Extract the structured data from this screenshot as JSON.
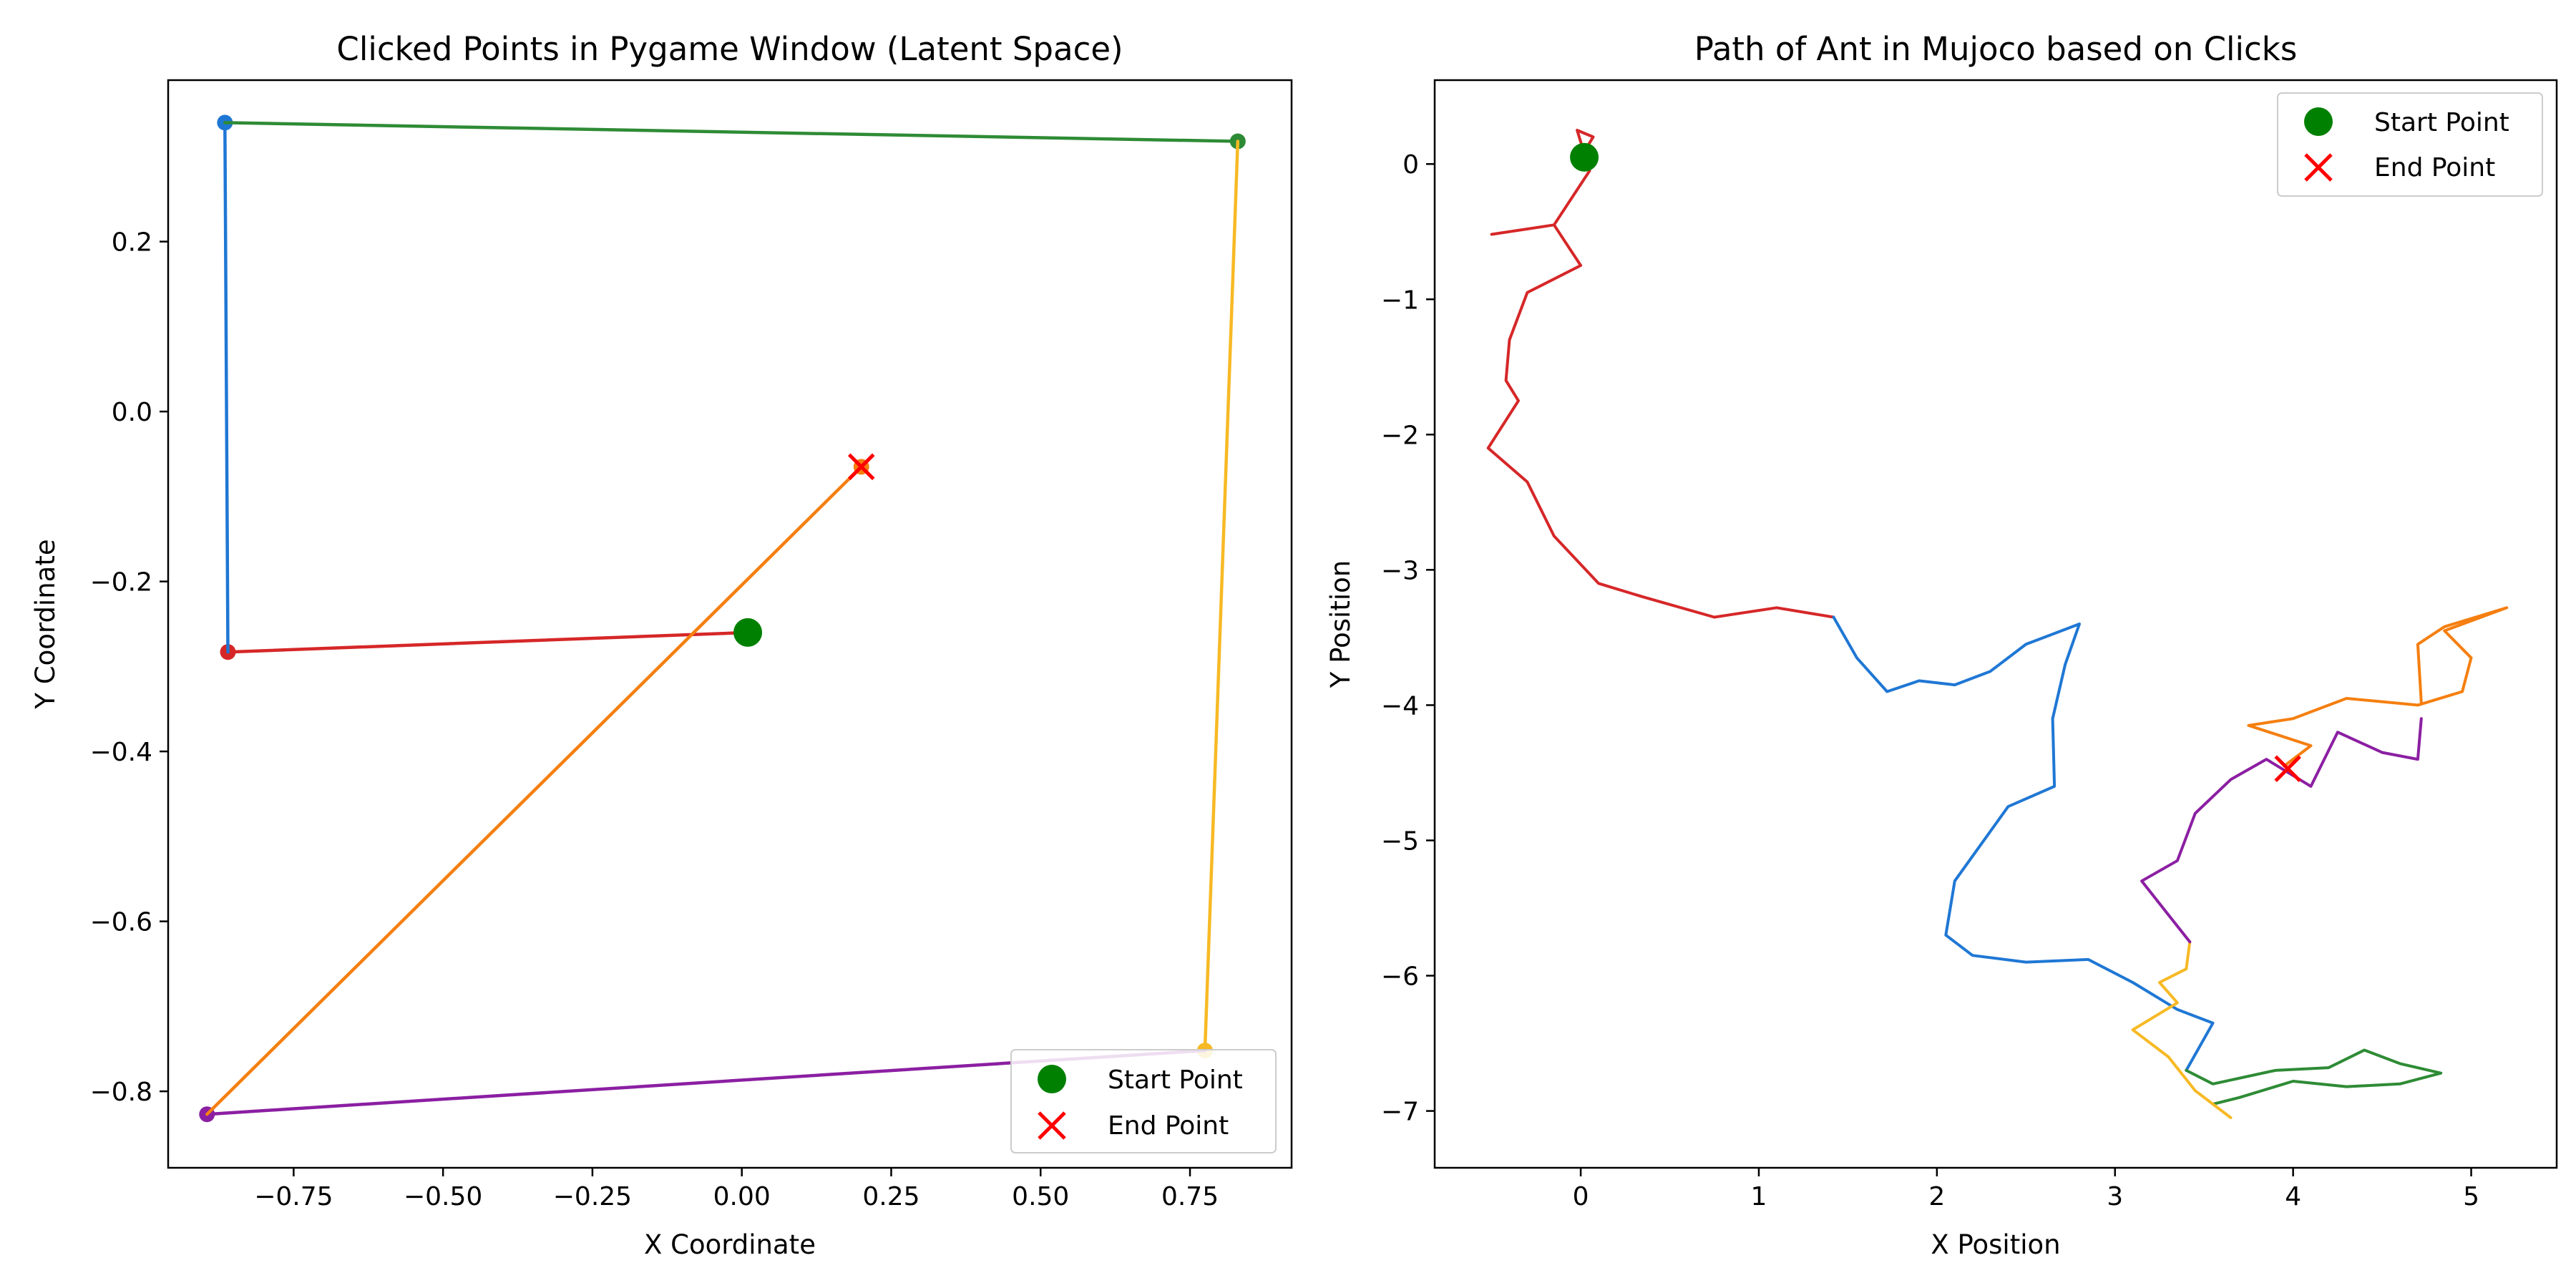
{
  "chart_data": [
    {
      "type": "line",
      "title": "Clicked Points in Pygame Window (Latent Space)",
      "xlabel": "X Coordinate",
      "ylabel": "Y Coordinate",
      "xlim": [
        -0.96,
        0.92
      ],
      "ylim": [
        -0.89,
        0.39
      ],
      "xticks": [
        -0.75,
        -0.5,
        -0.25,
        0.0,
        0.25,
        0.5,
        0.75
      ],
      "xtick_labels": [
        "−0.75",
        "−0.50",
        "−0.25",
        "0.00",
        "0.25",
        "0.50",
        "0.75"
      ],
      "yticks": [
        -0.8,
        -0.6,
        -0.4,
        -0.2,
        0.0,
        0.2
      ],
      "ytick_labels": [
        "−0.8",
        "−0.6",
        "−0.4",
        "−0.2",
        "0.0",
        "0.2"
      ],
      "grid": false,
      "legend": {
        "placement": "lower-right",
        "entries": [
          {
            "label": "Start Point",
            "marker": "circle",
            "color": "#008000"
          },
          {
            "label": "End Point",
            "marker": "x",
            "color": "#ff0000"
          }
        ]
      },
      "series": [
        {
          "color": "#d62728",
          "points": [
            [
              0.01,
              -0.26
            ],
            [
              -0.86,
              -0.283
            ]
          ]
        },
        {
          "color": "#1f77d4",
          "points": [
            [
              -0.86,
              -0.283
            ],
            [
              -0.865,
              0.34
            ]
          ]
        },
        {
          "color": "#2e8b35",
          "points": [
            [
              -0.865,
              0.34
            ],
            [
              0.83,
              0.318
            ]
          ]
        },
        {
          "color": "#f7b924",
          "points": [
            [
              0.83,
              0.318
            ],
            [
              0.775,
              -0.752
            ]
          ]
        },
        {
          "color": "#8b1fa2",
          "points": [
            [
              0.775,
              -0.752
            ],
            [
              -0.895,
              -0.827
            ]
          ]
        },
        {
          "color": "#f57f10",
          "points": [
            [
              -0.895,
              -0.827
            ],
            [
              0.2,
              -0.065
            ]
          ]
        }
      ],
      "start_point": [
        0.01,
        -0.26
      ],
      "end_point": [
        0.2,
        -0.065
      ]
    },
    {
      "type": "line",
      "title": "Path of Ant in Mujoco based on Clicks",
      "xlabel": "X Position",
      "ylabel": "Y Position",
      "xlim": [
        -0.82,
        5.48
      ],
      "ylim": [
        -7.42,
        0.62
      ],
      "xticks": [
        0,
        1,
        2,
        3,
        4,
        5
      ],
      "xtick_labels": [
        "0",
        "1",
        "2",
        "3",
        "4",
        "5"
      ],
      "yticks": [
        0,
        -1,
        -2,
        -3,
        -4,
        -5,
        -6,
        -7
      ],
      "ytick_labels": [
        "0",
        "−1",
        "−2",
        "−3",
        "−4",
        "−5",
        "−6",
        "−7"
      ],
      "grid": false,
      "legend": {
        "placement": "upper-right",
        "entries": [
          {
            "label": "Start Point",
            "marker": "circle",
            "color": "#008000"
          },
          {
            "label": "End Point",
            "marker": "x",
            "color": "#ff0000"
          }
        ]
      },
      "series": [
        {
          "color": "#d62728",
          "points": [
            [
              0.0,
              0.05
            ],
            [
              0.07,
              0.2
            ],
            [
              -0.02,
              0.25
            ],
            [
              0.05,
              -0.05
            ],
            [
              -0.15,
              -0.45
            ],
            [
              -0.5,
              -0.52
            ],
            [
              -0.15,
              -0.45
            ],
            [
              0.0,
              -0.75
            ],
            [
              -0.3,
              -0.95
            ],
            [
              -0.4,
              -1.3
            ],
            [
              -0.42,
              -1.6
            ],
            [
              -0.35,
              -1.75
            ],
            [
              -0.52,
              -2.1
            ],
            [
              -0.3,
              -2.35
            ],
            [
              -0.15,
              -2.75
            ],
            [
              0.1,
              -3.1
            ],
            [
              0.35,
              -3.2
            ],
            [
              0.75,
              -3.35
            ],
            [
              1.1,
              -3.28
            ],
            [
              1.42,
              -3.35
            ]
          ]
        },
        {
          "color": "#1f77d4",
          "points": [
            [
              1.42,
              -3.35
            ],
            [
              1.55,
              -3.65
            ],
            [
              1.72,
              -3.9
            ],
            [
              1.9,
              -3.82
            ],
            [
              2.1,
              -3.85
            ],
            [
              2.3,
              -3.75
            ],
            [
              2.5,
              -3.55
            ],
            [
              2.8,
              -3.4
            ],
            [
              2.72,
              -3.7
            ],
            [
              2.65,
              -4.1
            ],
            [
              2.66,
              -4.6
            ],
            [
              2.4,
              -4.75
            ],
            [
              2.1,
              -5.3
            ],
            [
              2.05,
              -5.7
            ],
            [
              2.2,
              -5.85
            ],
            [
              2.5,
              -5.9
            ],
            [
              2.85,
              -5.88
            ],
            [
              3.1,
              -6.05
            ],
            [
              3.35,
              -6.25
            ],
            [
              3.55,
              -6.35
            ],
            [
              3.4,
              -6.7
            ]
          ]
        },
        {
          "color": "#2e8b35",
          "points": [
            [
              3.4,
              -6.7
            ],
            [
              3.55,
              -6.8
            ],
            [
              3.9,
              -6.7
            ],
            [
              4.2,
              -6.68
            ],
            [
              4.4,
              -6.55
            ],
            [
              4.6,
              -6.65
            ],
            [
              4.83,
              -6.72
            ],
            [
              4.6,
              -6.8
            ],
            [
              4.3,
              -6.82
            ],
            [
              4.0,
              -6.78
            ],
            [
              3.7,
              -6.9
            ],
            [
              3.55,
              -6.95
            ]
          ]
        },
        {
          "color": "#f7b924",
          "points": [
            [
              3.65,
              -7.05
            ],
            [
              3.45,
              -6.85
            ],
            [
              3.3,
              -6.6
            ],
            [
              3.1,
              -6.4
            ],
            [
              3.35,
              -6.2
            ],
            [
              3.25,
              -6.05
            ],
            [
              3.4,
              -5.95
            ],
            [
              3.42,
              -5.75
            ]
          ]
        },
        {
          "color": "#8b1fa2",
          "points": [
            [
              3.42,
              -5.75
            ],
            [
              3.3,
              -5.55
            ],
            [
              3.15,
              -5.3
            ],
            [
              3.35,
              -5.15
            ],
            [
              3.45,
              -4.8
            ],
            [
              3.65,
              -4.55
            ],
            [
              3.85,
              -4.4
            ],
            [
              4.1,
              -4.6
            ],
            [
              4.25,
              -4.2
            ],
            [
              4.5,
              -4.35
            ],
            [
              4.7,
              -4.4
            ],
            [
              4.72,
              -4.1
            ]
          ]
        },
        {
          "color": "#f57f10",
          "points": [
            [
              3.95,
              -4.45
            ],
            [
              4.1,
              -4.3
            ],
            [
              3.75,
              -4.15
            ],
            [
              4.0,
              -4.1
            ],
            [
              4.3,
              -3.95
            ],
            [
              4.7,
              -4.0
            ],
            [
              4.95,
              -3.9
            ],
            [
              5.0,
              -3.65
            ],
            [
              4.85,
              -3.45
            ],
            [
              5.2,
              -3.28
            ],
            [
              4.85,
              -3.42
            ],
            [
              4.7,
              -3.55
            ],
            [
              4.72,
              -3.98
            ]
          ]
        }
      ],
      "start_point": [
        0.02,
        0.05
      ],
      "end_point": [
        3.97,
        -4.47
      ]
    }
  ]
}
